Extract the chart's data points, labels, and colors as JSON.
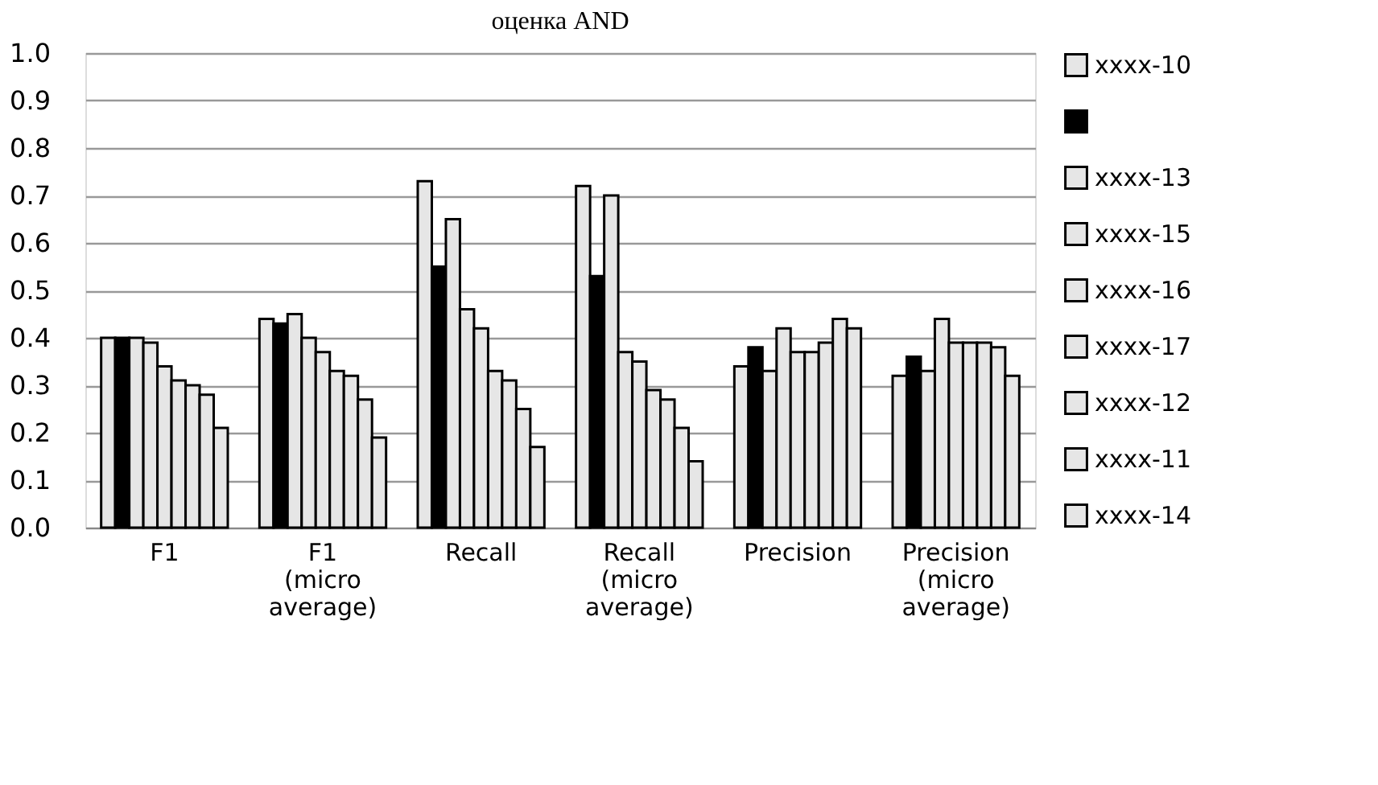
{
  "chart_data": {
    "type": "bar",
    "title": "оценка AND",
    "categories": [
      "F1",
      "F1 (micro average)",
      "Recall",
      "Recall (micro average)",
      "Precision",
      "Precision (micro average)"
    ],
    "series": [
      {
        "name": "xxxx-10",
        "color": "#e6e6e6",
        "values": [
          0.4,
          0.44,
          0.73,
          0.72,
          0.34,
          0.32
        ]
      },
      {
        "name": null,
        "color": "#000000",
        "values": [
          0.4,
          0.43,
          0.55,
          0.53,
          0.38,
          0.36
        ]
      },
      {
        "name": "xxxx-13",
        "color": "#e6e6e6",
        "values": [
          0.4,
          0.45,
          0.65,
          0.7,
          0.33,
          0.33
        ]
      },
      {
        "name": "xxxx-15",
        "color": "#e6e6e6",
        "values": [
          0.39,
          0.4,
          0.46,
          0.37,
          0.42,
          0.44
        ]
      },
      {
        "name": "xxxx-16",
        "color": "#e6e6e6",
        "values": [
          0.34,
          0.37,
          0.42,
          0.35,
          0.37,
          0.39
        ]
      },
      {
        "name": "xxxx-17",
        "color": "#e6e6e6",
        "values": [
          0.31,
          0.33,
          0.33,
          0.29,
          0.37,
          0.39
        ]
      },
      {
        "name": "xxxx-12",
        "color": "#e6e6e6",
        "values": [
          0.3,
          0.32,
          0.31,
          0.27,
          0.39,
          0.39
        ]
      },
      {
        "name": "xxxx-11",
        "color": "#e6e6e6",
        "values": [
          0.28,
          0.27,
          0.25,
          0.21,
          0.44,
          0.38
        ]
      },
      {
        "name": "xxxx-14",
        "color": "#e6e6e6",
        "values": [
          0.21,
          0.19,
          0.17,
          0.14,
          0.42,
          0.32
        ]
      }
    ],
    "ylim": [
      0,
      1.0
    ],
    "yticks": [
      {
        "value": 0,
        "label": "0.0"
      },
      0.1,
      0.2,
      0.3,
      0.4,
      0.5,
      0.6,
      0.7,
      0.8,
      0.9,
      {
        "value": 1,
        "label": "1.0"
      }
    ],
    "grid": "y",
    "legend": "right"
  }
}
